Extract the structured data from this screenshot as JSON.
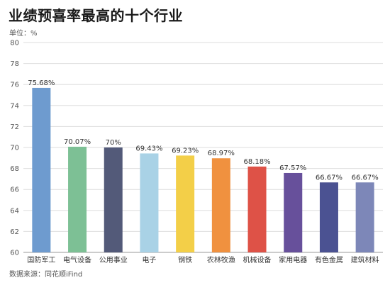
{
  "header": {
    "title": "业绩预喜率最高的十个行业",
    "unit": "单位：%"
  },
  "footer": {
    "source": "数据来源：同花顺iFind"
  },
  "chart_data": {
    "type": "bar",
    "title": "业绩预喜率最高的十个行业",
    "xlabel": "",
    "ylabel": "",
    "categories": [
      "国防军工",
      "电气设备",
      "公用事业",
      "电子",
      "钢铁",
      "农林牧渔",
      "机械设备",
      "家用电器",
      "有色金属",
      "建筑材料"
    ],
    "values": [
      75.68,
      70.07,
      70,
      69.43,
      69.23,
      68.97,
      68.18,
      67.57,
      66.67,
      66.67
    ],
    "value_labels": [
      "75.68%",
      "70.07%",
      "70%",
      "69.43%",
      "69.23%",
      "68.97%",
      "68.18%",
      "67.57%",
      "66.67%",
      "66.67%"
    ],
    "colors": [
      "#6e9bcf",
      "#7dc095",
      "#535a79",
      "#a9d2e6",
      "#f3cf48",
      "#f0913f",
      "#de5247",
      "#67509b",
      "#4b5292",
      "#7d87b8"
    ],
    "ylim": [
      60,
      80
    ],
    "yticks": [
      60,
      62,
      64,
      66,
      68,
      70,
      72,
      74,
      76,
      78,
      80
    ],
    "grid": true,
    "legend": "none"
  }
}
